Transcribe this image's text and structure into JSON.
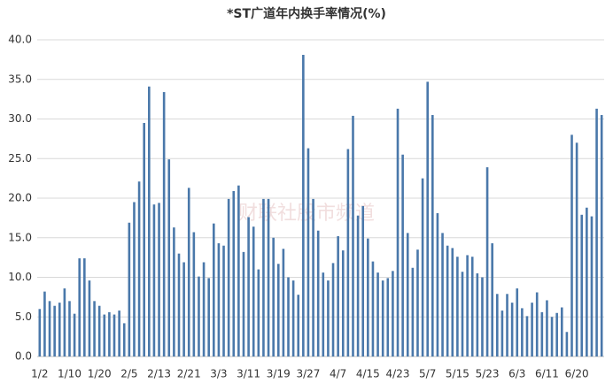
{
  "chart_data": {
    "type": "bar",
    "title": "*ST广道年内换手率情况(%)",
    "watermark": "财联社股市频道",
    "categories": [
      "1/2",
      null,
      null,
      null,
      null,
      null,
      "1/10",
      null,
      null,
      null,
      null,
      null,
      "1/20",
      null,
      null,
      null,
      null,
      null,
      "2/5",
      null,
      null,
      null,
      null,
      null,
      "2/13",
      null,
      null,
      null,
      null,
      null,
      "2/21",
      null,
      null,
      null,
      null,
      null,
      "3/3",
      null,
      null,
      null,
      null,
      null,
      "3/11",
      null,
      null,
      null,
      null,
      null,
      "3/19",
      null,
      null,
      null,
      null,
      null,
      "3/27",
      null,
      null,
      null,
      null,
      null,
      "4/7",
      null,
      null,
      null,
      null,
      null,
      "4/15",
      null,
      null,
      null,
      null,
      null,
      "4/23",
      null,
      null,
      null,
      null,
      null,
      "5/7",
      null,
      null,
      null,
      null,
      null,
      "5/15",
      null,
      null,
      null,
      null,
      null,
      "5/23",
      null,
      null,
      null,
      null,
      null,
      "6/3",
      null,
      null,
      null,
      null,
      null,
      "6/11",
      null,
      null,
      null,
      null,
      null,
      "6/20",
      null,
      null,
      null,
      null,
      null
    ],
    "values": [
      6.0,
      8.2,
      7.0,
      6.4,
      6.8,
      8.6,
      7.0,
      5.4,
      12.4,
      12.4,
      9.6,
      7.0,
      6.4,
      5.3,
      5.6,
      5.3,
      5.8,
      4.2,
      16.9,
      19.5,
      22.1,
      29.5,
      34.1,
      19.2,
      19.4,
      33.4,
      24.9,
      16.3,
      13.0,
      11.9,
      21.3,
      15.7,
      10.1,
      11.9,
      9.9,
      16.8,
      14.3,
      14.0,
      19.9,
      20.9,
      21.6,
      13.2,
      17.6,
      16.4,
      11.0,
      19.9,
      19.9,
      15.0,
      11.7,
      13.6,
      10.0,
      9.6,
      7.8,
      38.1,
      26.3,
      19.9,
      15.9,
      10.6,
      9.6,
      11.8,
      15.2,
      13.4,
      26.2,
      30.4,
      17.8,
      19.0,
      14.9,
      12.0,
      10.6,
      9.6,
      9.9,
      10.8,
      31.3,
      25.5,
      15.6,
      11.2,
      13.5,
      22.5,
      34.7,
      30.5,
      18.1,
      15.6,
      14.0,
      13.7,
      12.6,
      10.7,
      12.8,
      12.6,
      10.5,
      10.0,
      23.9,
      14.3,
      7.9,
      5.8,
      7.9,
      6.8,
      8.6,
      6.1,
      5.1,
      6.8,
      8.1,
      5.6,
      7.1,
      5.0,
      5.5,
      6.2,
      3.1,
      28.0,
      27.0,
      17.9,
      18.8,
      17.7,
      31.3,
      30.5
    ],
    "color": "#4a78aa",
    "ylim": [
      0,
      40
    ],
    "yticks": [
      {
        "value": 0,
        "label": "0.0"
      },
      {
        "value": 5,
        "label": "5.0"
      },
      {
        "value": 10,
        "label": "10.0"
      },
      {
        "value": 15,
        "label": "15.0"
      },
      {
        "value": 20,
        "label": "20.0"
      },
      {
        "value": 25,
        "label": "25.0"
      },
      {
        "value": 30,
        "label": "30.0"
      },
      {
        "value": 35,
        "label": "35.0"
      },
      {
        "value": 40,
        "label": "40.0"
      }
    ],
    "grid": true
  }
}
